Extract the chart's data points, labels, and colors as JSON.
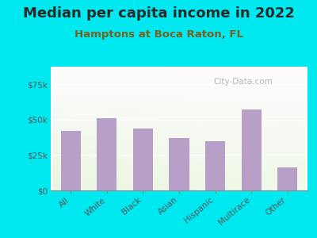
{
  "title": "Median per capita income in 2022",
  "subtitle": "Hamptons at Boca Raton, FL",
  "categories": [
    "All",
    "White",
    "Black",
    "Asian",
    "Hispanic",
    "Multirace",
    "Other"
  ],
  "values": [
    42000,
    51000,
    44000,
    37000,
    35000,
    57000,
    16000
  ],
  "bar_color": "#b89fc8",
  "background_outer": "#00e8f0",
  "background_inner": "#e8f2e0",
  "title_color": "#2a2a2a",
  "subtitle_color": "#7a6020",
  "tick_color": "#555555",
  "ylim": [
    0,
    87500
  ],
  "yticks": [
    0,
    25000,
    50000,
    75000
  ],
  "ytick_labels": [
    "$0",
    "$25k",
    "$50k",
    "$75k"
  ],
  "title_fontsize": 13,
  "subtitle_fontsize": 9.5,
  "watermark": "City-Data.com"
}
